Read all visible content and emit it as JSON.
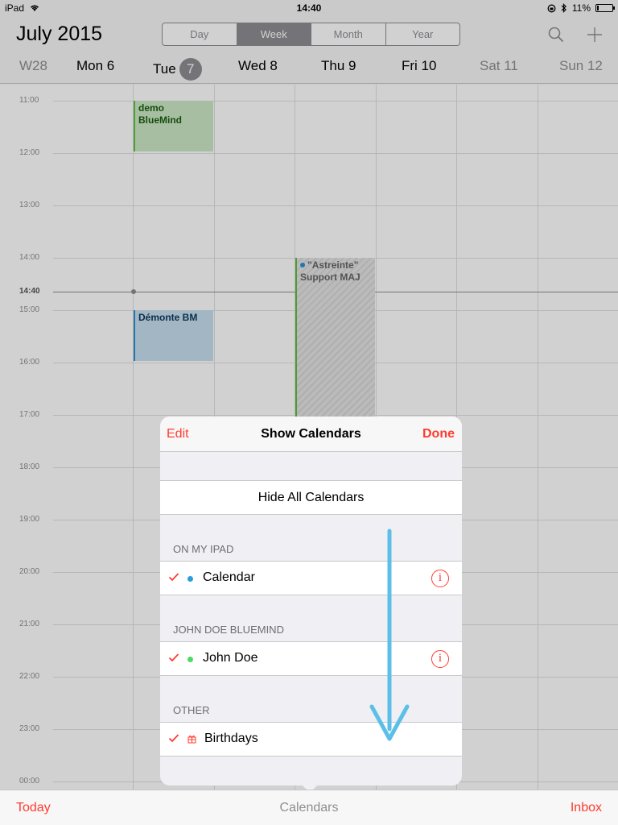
{
  "statusbar": {
    "device": "iPad",
    "time": "14:40",
    "battery": "11%",
    "battery_level": 0.11
  },
  "header": {
    "month": "July",
    "year": "2015",
    "views": [
      "Day",
      "Week",
      "Month",
      "Year"
    ],
    "active_view": "Week",
    "week": "W28",
    "days": [
      {
        "label": "Mon 6",
        "today": false,
        "weekend": false
      },
      {
        "label": "Tue",
        "num": "7",
        "today": true,
        "weekend": false
      },
      {
        "label": "Wed 8",
        "today": false,
        "weekend": false
      },
      {
        "label": "Thu 9",
        "today": false,
        "weekend": false
      },
      {
        "label": "Fri 10",
        "today": false,
        "weekend": false
      },
      {
        "label": "Sat 11",
        "today": false,
        "weekend": true
      },
      {
        "label": "Sun 12",
        "today": false,
        "weekend": true
      }
    ]
  },
  "grid": {
    "hours": [
      "11:00",
      "12:00",
      "13:00",
      "14:00",
      "15:00",
      "16:00",
      "17:00",
      "18:00",
      "19:00",
      "20:00",
      "21:00",
      "22:00",
      "23:00",
      "00:00"
    ],
    "now_label": "14:40",
    "events": [
      {
        "title": "demo BlueMind",
        "day": "Tue",
        "color": "#5fbe3f"
      },
      {
        "title": "Démonte BM",
        "day": "Tue",
        "color": "#2d8ed4"
      },
      {
        "title": "\"Astreinte\" Support MAJ",
        "day": "Thu",
        "color": "#2d8ed4"
      }
    ]
  },
  "popover": {
    "edit": "Edit",
    "title": "Show Calendars",
    "done": "Done",
    "hide_all": "Hide All Calendars",
    "sections": [
      {
        "header": "ON MY IPAD",
        "items": [
          {
            "label": "Calendar",
            "checked": true,
            "dot_color": "#2d9cdb",
            "info": true
          }
        ]
      },
      {
        "header": "JOHN DOE BLUEMIND",
        "items": [
          {
            "label": "John Doe",
            "checked": true,
            "dot_color": "#4cd964",
            "info": true
          }
        ]
      },
      {
        "header": "OTHER",
        "items": [
          {
            "label": "Birthdays",
            "checked": true,
            "icon": "gift-icon",
            "info": false
          }
        ]
      }
    ]
  },
  "tabbar": {
    "today": "Today",
    "calendars": "Calendars",
    "inbox": "Inbox"
  },
  "colors": {
    "accent": "#ff3b30",
    "arrow": "#5bbfe8"
  }
}
